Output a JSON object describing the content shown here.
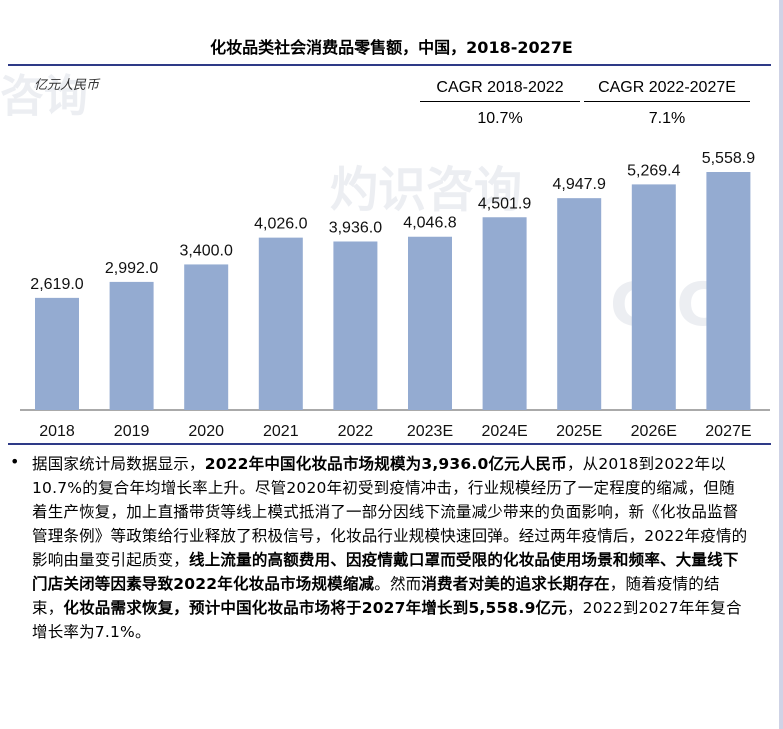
{
  "header": {
    "title": "化妆品类社会消费品零售额，中国，2018-2027E",
    "unit": "亿元人民币"
  },
  "cagr": [
    {
      "label": "CAGR 2018-2022",
      "value": "10.7%"
    },
    {
      "label": "CAGR 2022-2027E",
      "value": "7.1%"
    }
  ],
  "chart_data": {
    "type": "bar",
    "categories": [
      "2018",
      "2019",
      "2020",
      "2021",
      "2022",
      "2023E",
      "2024E",
      "2025E",
      "2026E",
      "2027E"
    ],
    "values": [
      2619.0,
      2992.0,
      3400.0,
      4026.0,
      3936.0,
      4046.8,
      4501.9,
      4947.9,
      5269.4,
      5558.9
    ],
    "value_labels": [
      "2,619.0",
      "2,992.0",
      "3,400.0",
      "4,026.0",
      "3,936.0",
      "4,046.8",
      "4,501.9",
      "4,947.9",
      "5,269.4",
      "5,558.9"
    ],
    "ylabel": "亿元人民币",
    "color": "#94abd1"
  },
  "bullet": {
    "segments": [
      {
        "text": "据国家统计局数据显示，",
        "bold": false
      },
      {
        "text": "2022年中国化妆品市场规模为3,936.0亿元人民币",
        "bold": true
      },
      {
        "text": "，从2018到2022年以10.7%的复合年均增长率上升。尽管2020年初受到疫情冲击，行业规模经历了一定程度的缩减，但随着生产恢复，加上直播带货等线上模式抵消了一部分因线下流量减少带来的负面影响，新《化妆品监督管理条例》等政策给行业释放了积极信号，化妆品行业规模快速回弹。经过两年疫情后，2022年疫情的影响由量变引起质变，",
        "bold": false
      },
      {
        "text": "线上流量的高额费用、因疫情戴口罩而受限的化妆品使用场景和频率、大量线下门店关闭等因素导致2022年化妆品市场规模缩减",
        "bold": true
      },
      {
        "text": "。然而",
        "bold": false
      },
      {
        "text": "消费者对美的追求长期存在",
        "bold": true
      },
      {
        "text": "，随着疫情的结束，",
        "bold": false
      },
      {
        "text": "化妆品需求恢复，预计中国化妆品市场将于2027年增长到5,558.9亿元",
        "bold": true
      },
      {
        "text": "，2022到2027年年复合增长率为7.1%。",
        "bold": false
      }
    ]
  }
}
